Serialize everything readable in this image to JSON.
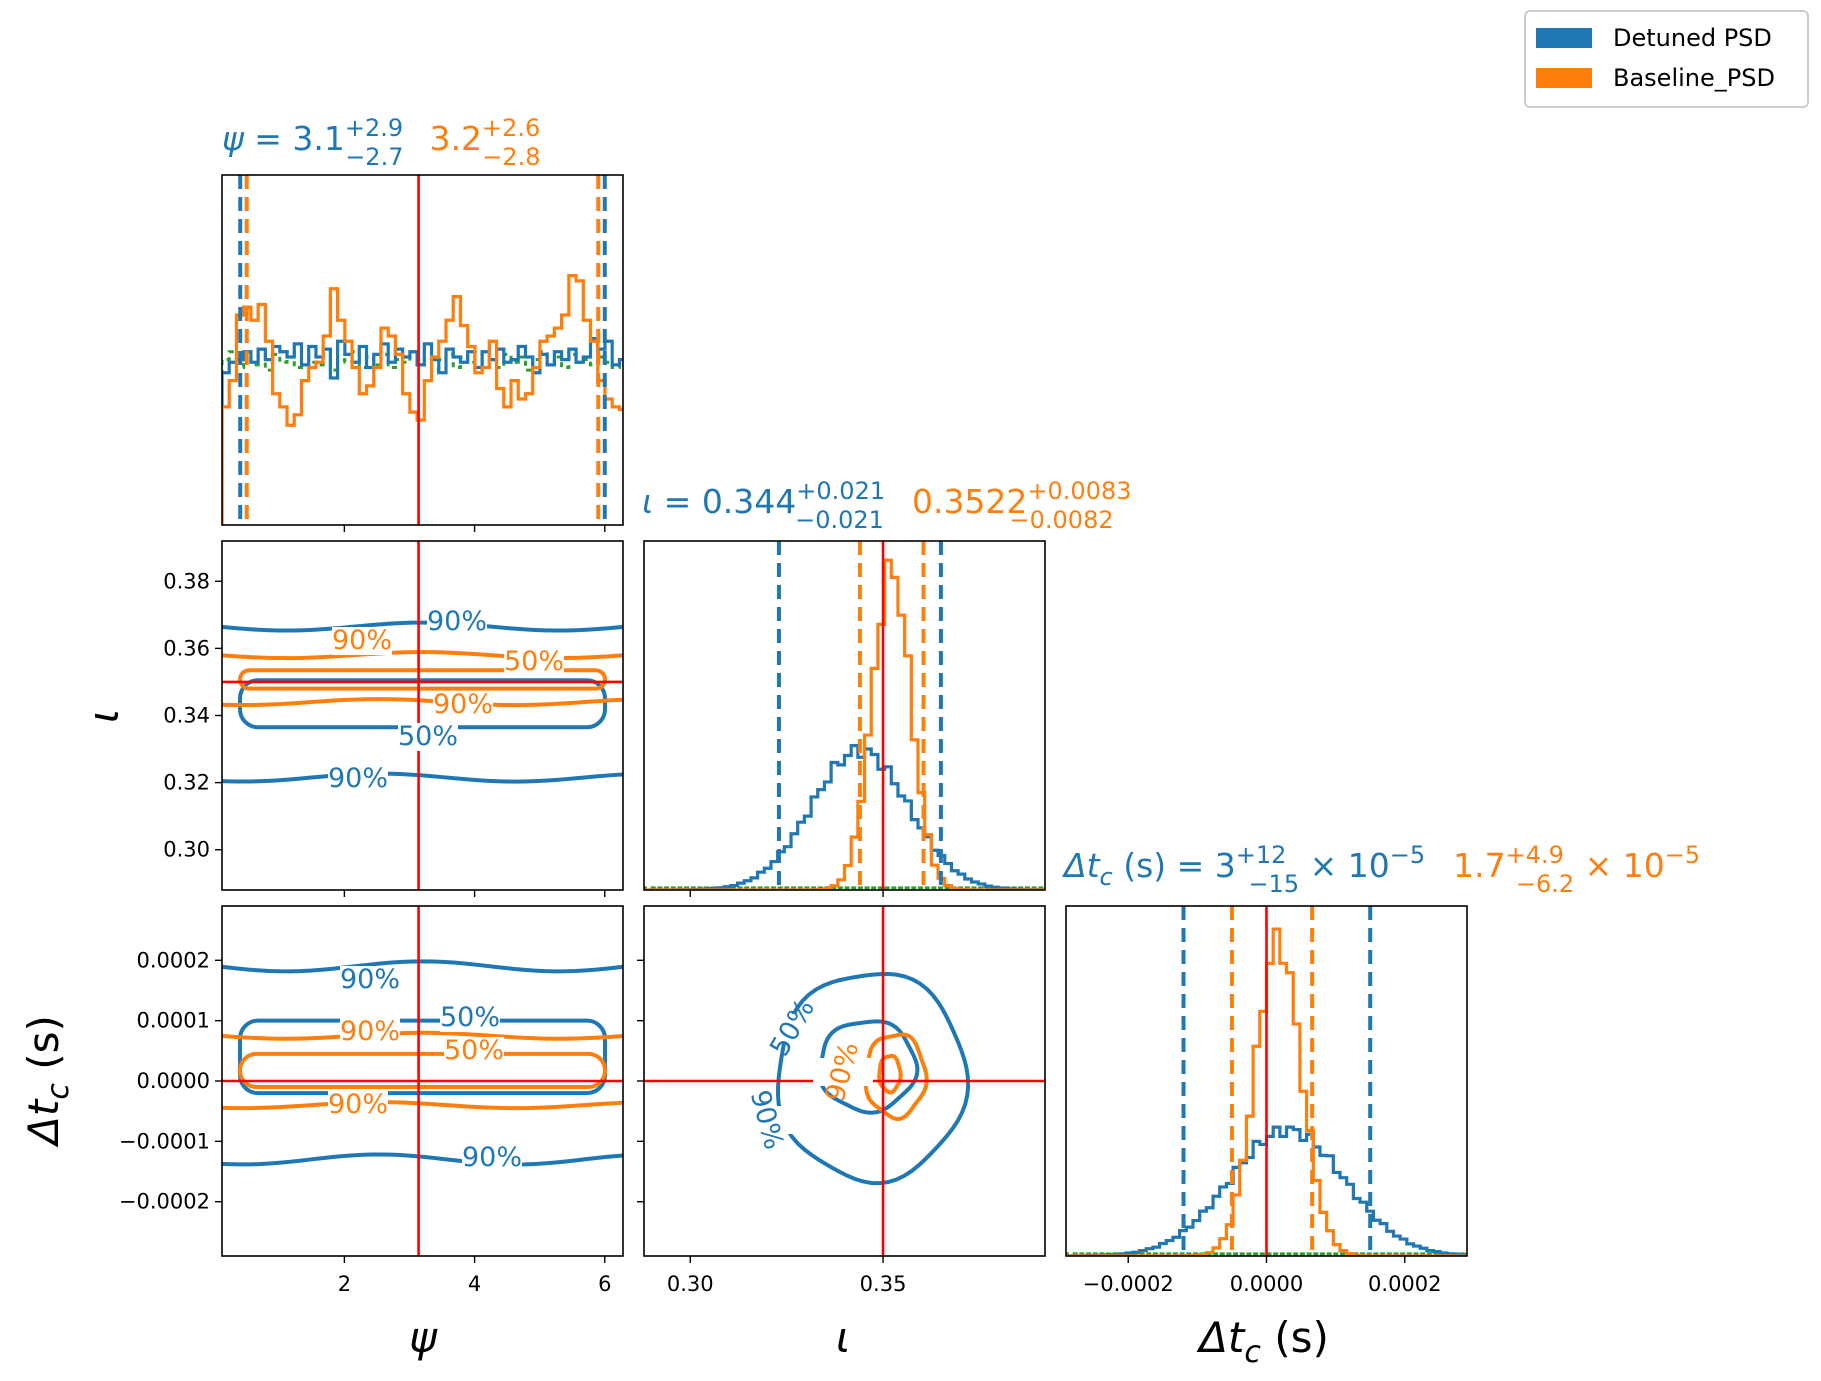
{
  "colors": {
    "detuned": "#1f77b4",
    "baseline": "#ff7f0e",
    "prior": "#2ca02c",
    "truth": "#ff0000"
  },
  "legend": {
    "placement": "top-right",
    "entries": [
      "Detuned PSD",
      "Baseline_PSD"
    ]
  },
  "titles": {
    "psi": {
      "sym": "ψ",
      "eq": " = ",
      "detuned": {
        "val": "3.1",
        "up": "+2.9",
        "lo": "−2.7",
        "mult": "",
        "exp": ""
      },
      "baseline": {
        "val": "3.2",
        "up": "+2.6",
        "lo": "−2.8",
        "mult": "",
        "exp": ""
      }
    },
    "iota": {
      "sym": "ι",
      "eq": " = ",
      "detuned": {
        "val": "0.344",
        "up": "+0.021",
        "lo": "−0.021",
        "mult": "",
        "exp": ""
      },
      "baseline": {
        "val": "0.3522",
        "up": "+0.0083",
        "lo": "−0.0082",
        "mult": "",
        "exp": ""
      }
    },
    "dtc": {
      "sym": "Δt",
      "sub": "c",
      "eq": " (s) = ",
      "detuned": {
        "val": "3",
        "up": "+12",
        "lo": "−15",
        "mult": " × 10",
        "exp": "−5"
      },
      "baseline": {
        "val": "1.7",
        "up": "+4.9",
        "lo": "−6.2",
        "mult": " × 10",
        "exp": "−5"
      }
    }
  },
  "axis_labels": {
    "psi": "ψ",
    "iota": "ι",
    "dtc_main": "Δt",
    "dtc_sub": "c",
    "dtc_unit": " (s)"
  },
  "ticks": {
    "psi": [
      "2",
      "4",
      "6"
    ],
    "iota_y": [
      "0.30",
      "0.32",
      "0.34",
      "0.36",
      "0.38"
    ],
    "iota_x": [
      "0.30",
      "0.35"
    ],
    "dtc": [
      "−0.0002",
      "−0.0001",
      "0.0000",
      "0.0001",
      "0.0002"
    ],
    "dtc_x": [
      "−0.0002",
      "0.0000",
      "0.0002"
    ]
  },
  "contour_labels": [
    "90%",
    "50%"
  ],
  "chart_data": {
    "type": "corner",
    "parameters": [
      "psi",
      "iota",
      "dtc"
    ],
    "ranges": {
      "psi": [
        0.12,
        6.28
      ],
      "iota": [
        0.288,
        0.392
      ],
      "dtc": [
        -0.00029,
        0.00029
      ]
    },
    "truth": {
      "psi": 3.14,
      "iota": 0.35,
      "dtc": 0.0
    },
    "grid": false,
    "series": [
      {
        "name": "Detuned PSD",
        "color": "#1f77b4",
        "median": {
          "psi": 3.1,
          "iota": 0.344,
          "dtc": 3e-05
        },
        "interval": {
          "psi": [
            0.4,
            6.0
          ],
          "iota": [
            0.323,
            0.365
          ],
          "dtc": [
            -0.00012,
            0.00015
          ]
        },
        "contours": {
          "psi_iota": {
            "90": [
              0.3215,
              0.3665
            ],
            "50": [
              0.3365,
              0.3505
            ]
          },
          "psi_dtc": {
            "90": [
              -0.00013,
              0.00019
            ],
            "50": [
              -2e-05,
              0.0001
            ]
          },
          "iota_dtc": {
            "90": [
              0.3225,
              0.3715,
              -0.000165,
              0.00018
            ],
            "50": [
              0.3335,
              0.3585,
              -5e-05,
              0.0001
            ]
          }
        }
      },
      {
        "name": "Baseline_PSD",
        "color": "#ff7f0e",
        "median": {
          "psi": 3.2,
          "iota": 0.3522,
          "dtc": 1.7e-05
        },
        "interval": {
          "psi": [
            0.4,
            5.9
          ],
          "iota": [
            0.344,
            0.3605
          ],
          "dtc": [
            -5e-05,
            6.6e-05
          ]
        },
        "contours": {
          "psi_iota": {
            "90": [
              0.344,
              0.358
            ],
            "50": [
              0.348,
              0.3535
            ]
          },
          "psi_dtc": {
            "90": [
              -4e-05,
              7.5e-05
            ],
            "50": [
              -1e-05,
              4.5e-05
            ]
          },
          "iota_dtc": {
            "90": [
              0.3455,
              0.361,
              -6e-05,
              7.8e-05
            ],
            "50": [
              0.349,
              0.3545,
              -1.8e-05,
              4.2e-05
            ]
          }
        }
      },
      {
        "color": "#2ca02c",
        "style": "dotted"
      }
    ],
    "histograms": {
      "psi": {
        "bin_start": 0.12,
        "bin_width": 0.111,
        "detuned": [
          0.58,
          0.62,
          0.63,
          0.66,
          0.62,
          0.67,
          0.63,
          0.68,
          0.66,
          0.64,
          0.69,
          0.61,
          0.68,
          0.64,
          0.67,
          0.56,
          0.7,
          0.65,
          0.62,
          0.68,
          0.6,
          0.65,
          0.69,
          0.62,
          0.67,
          0.64,
          0.66,
          0.61,
          0.69,
          0.63,
          0.58,
          0.67,
          0.64,
          0.62,
          0.66,
          0.6,
          0.66,
          0.63,
          0.67,
          0.62,
          0.63,
          0.68,
          0.64,
          0.58,
          0.65,
          0.61,
          0.66,
          0.63,
          0.67,
          0.62,
          0.64,
          0.71,
          0.67,
          0.7,
          0.61,
          0.63,
          0.68
        ],
        "baseline": [
          0.45,
          0.55,
          0.8,
          0.83,
          0.78,
          0.84,
          0.7,
          0.5,
          0.45,
          0.38,
          0.42,
          0.55,
          0.6,
          0.62,
          0.72,
          0.9,
          0.78,
          0.7,
          0.6,
          0.5,
          0.53,
          0.6,
          0.75,
          0.72,
          0.65,
          0.5,
          0.43,
          0.4,
          0.55,
          0.64,
          0.7,
          0.78,
          0.87,
          0.76,
          0.68,
          0.58,
          0.6,
          0.7,
          0.52,
          0.45,
          0.55,
          0.48,
          0.5,
          0.6,
          0.7,
          0.72,
          0.75,
          0.8,
          0.95,
          0.93,
          0.78,
          0.7,
          0.55,
          0.48,
          0.45,
          0.44,
          0.45
        ],
        "prior": [
          0.63,
          0.66,
          0.6,
          0.64,
          0.61,
          0.67,
          0.59,
          0.65,
          0.62,
          0.66,
          0.6,
          0.64,
          0.62,
          0.61,
          0.65,
          0.59,
          0.63,
          0.62,
          0.66,
          0.6,
          0.64,
          0.61,
          0.65,
          0.6,
          0.63,
          0.62,
          0.66,
          0.61,
          0.64,
          0.59,
          0.63,
          0.65,
          0.6,
          0.64,
          0.62,
          0.66,
          0.61,
          0.63,
          0.6,
          0.65,
          0.62,
          0.64,
          0.59,
          0.63,
          0.66,
          0.61,
          0.64,
          0.6,
          0.65,
          0.62,
          0.63,
          0.61,
          0.64,
          0.62,
          0.6,
          0.63,
          0.64
        ]
      },
      "iota": {
        "center": {
          "detuned": 0.344,
          "baseline": 0.3522
        },
        "sigma": {
          "detuned": 0.0125,
          "baseline": 0.005
        },
        "peak_height": {
          "detuned": 0.4,
          "baseline": 0.92
        }
      },
      "dtc": {
        "center": {
          "detuned": 3e-05,
          "baseline": 1.7e-05
        },
        "sigma": {
          "detuned": 8.3e-05,
          "baseline": 3.3e-05
        },
        "peak_height": {
          "detuned": 0.36,
          "baseline": 0.9
        }
      }
    }
  }
}
